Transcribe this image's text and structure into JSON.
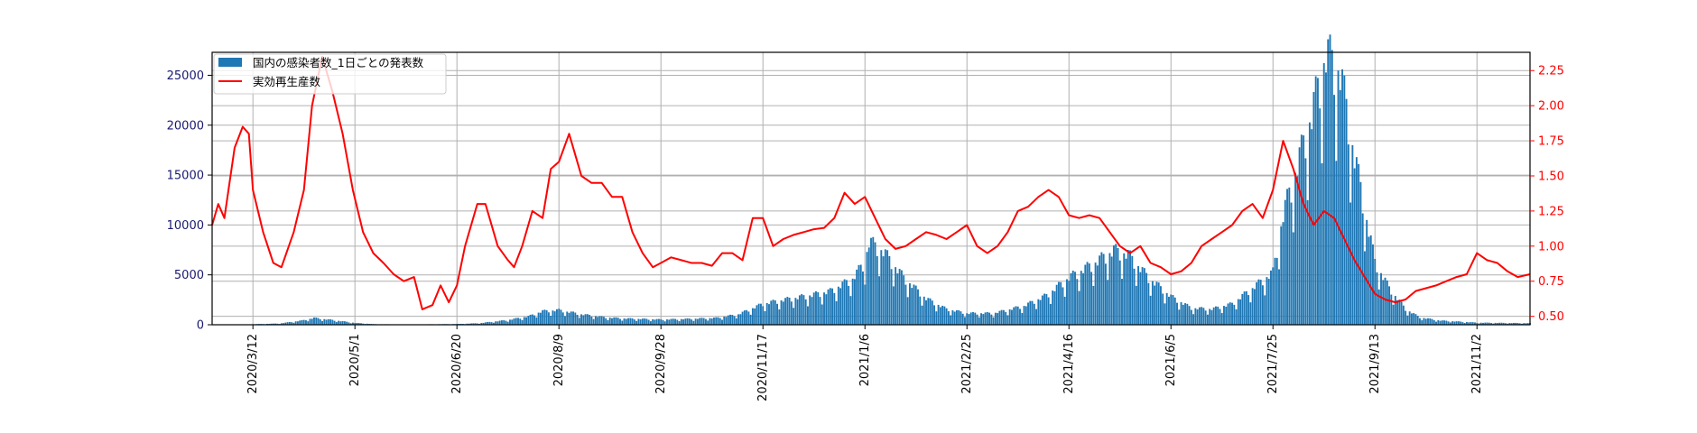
{
  "chart_data": {
    "type": "bar",
    "x_ticks": [
      "2020/3/12",
      "2020/5/1",
      "2020/6/20",
      "2020/8/9",
      "2020/9/28",
      "2020/11/17",
      "2021/1/6",
      "2021/2/25",
      "2021/4/16",
      "2021/6/5",
      "2021/7/25",
      "2021/9/13",
      "2021/11/2"
    ],
    "x_range": [
      "2020/2/21",
      "2021/11/28"
    ],
    "y_left": {
      "ticks": [
        0,
        5000,
        10000,
        15000,
        20000,
        25000
      ],
      "lim": [
        0,
        27300
      ],
      "color": "#191970"
    },
    "y_right": {
      "ticks": [
        0.5,
        0.75,
        1.0,
        1.25,
        1.5,
        1.75,
        2.0,
        2.25
      ],
      "lim": [
        0.44,
        2.38
      ],
      "color": "#ff0000"
    },
    "grid": true,
    "legend_placement": "upper-left",
    "series": [
      {
        "name": "国内の感染者数_1日ごとの発表数",
        "kind": "bar",
        "axis": "left",
        "color": "#1f77b4",
        "points": [
          [
            "2020/2/21",
            10
          ],
          [
            "2020/3/1",
            20
          ],
          [
            "2020/3/12",
            50
          ],
          [
            "2020/3/25",
            120
          ],
          [
            "2020/4/5",
            400
          ],
          [
            "2020/4/11",
            650
          ],
          [
            "2020/4/20",
            450
          ],
          [
            "2020/5/1",
            180
          ],
          [
            "2020/5/10",
            60
          ],
          [
            "2020/5/25",
            30
          ],
          [
            "2020/6/10",
            50
          ],
          [
            "2020/6/20",
            70
          ],
          [
            "2020/7/1",
            150
          ],
          [
            "2020/7/15",
            450
          ],
          [
            "2020/7/25",
            800
          ],
          [
            "2020/8/1",
            1300
          ],
          [
            "2020/8/9",
            1400
          ],
          [
            "2020/8/20",
            1000
          ],
          [
            "2020/9/1",
            700
          ],
          [
            "2020/9/10",
            600
          ],
          [
            "2020/9/28",
            500
          ],
          [
            "2020/10/10",
            550
          ],
          [
            "2020/10/25",
            650
          ],
          [
            "2020/11/5",
            1000
          ],
          [
            "2020/11/17",
            2000
          ],
          [
            "2020/11/28",
            2400
          ],
          [
            "2020/12/10",
            2800
          ],
          [
            "2020/12/20",
            3200
          ],
          [
            "2020/12/31",
            4400
          ],
          [
            "2021/1/6",
            6000
          ],
          [
            "2021/1/8",
            7900
          ],
          [
            "2021/1/15",
            7000
          ],
          [
            "2021/1/25",
            4500
          ],
          [
            "2021/2/5",
            2500
          ],
          [
            "2021/2/15",
            1500
          ],
          [
            "2021/2/25",
            1100
          ],
          [
            "2021/3/10",
            1100
          ],
          [
            "2021/3/25",
            1800
          ],
          [
            "2021/4/5",
            2800
          ],
          [
            "2021/4/16",
            4500
          ],
          [
            "2021/4/28",
            5800
          ],
          [
            "2021/5/8",
            7100
          ],
          [
            "2021/5/15",
            6700
          ],
          [
            "2021/5/25",
            4500
          ],
          [
            "2021/6/5",
            2700
          ],
          [
            "2021/6/15",
            1600
          ],
          [
            "2021/6/25",
            1500
          ],
          [
            "2021/7/5",
            2000
          ],
          [
            "2021/7/15",
            3500
          ],
          [
            "2021/7/25",
            5000
          ],
          [
            "2021/7/30",
            10500
          ],
          [
            "2021/8/5",
            14500
          ],
          [
            "2021/8/13",
            20000
          ],
          [
            "2021/8/20",
            25800
          ],
          [
            "2021/8/27",
            24000
          ],
          [
            "2021/9/3",
            16000
          ],
          [
            "2021/9/8",
            11000
          ],
          [
            "2021/9/13",
            6000
          ],
          [
            "2021/9/20",
            3500
          ],
          [
            "2021/9/28",
            1500
          ],
          [
            "2021/10/5",
            700
          ],
          [
            "2021/10/15",
            400
          ],
          [
            "2021/11/2",
            200
          ],
          [
            "2021/11/28",
            150
          ]
        ]
      },
      {
        "name": "実効再生産数",
        "kind": "line",
        "axis": "right",
        "color": "#ff0000",
        "points": [
          [
            "2020/2/21",
            1.15
          ],
          [
            "2020/2/24",
            1.3
          ],
          [
            "2020/2/27",
            1.2
          ],
          [
            "2020/3/3",
            1.7
          ],
          [
            "2020/3/7",
            1.85
          ],
          [
            "2020/3/10",
            1.8
          ],
          [
            "2020/3/12",
            1.4
          ],
          [
            "2020/3/17",
            1.1
          ],
          [
            "2020/3/22",
            0.88
          ],
          [
            "2020/3/26",
            0.85
          ],
          [
            "2020/4/1",
            1.1
          ],
          [
            "2020/4/6",
            1.4
          ],
          [
            "2020/4/10",
            2.0
          ],
          [
            "2020/4/15",
            2.35
          ],
          [
            "2020/4/20",
            2.1
          ],
          [
            "2020/4/25",
            1.8
          ],
          [
            "2020/4/30",
            1.4
          ],
          [
            "2020/5/5",
            1.1
          ],
          [
            "2020/5/10",
            0.95
          ],
          [
            "2020/5/15",
            0.88
          ],
          [
            "2020/5/20",
            0.8
          ],
          [
            "2020/5/25",
            0.75
          ],
          [
            "2020/5/30",
            0.78
          ],
          [
            "2020/6/3",
            0.55
          ],
          [
            "2020/6/8",
            0.58
          ],
          [
            "2020/6/12",
            0.72
          ],
          [
            "2020/6/16",
            0.6
          ],
          [
            "2020/6/20",
            0.72
          ],
          [
            "2020/6/24",
            1.0
          ],
          [
            "2020/6/30",
            1.3
          ],
          [
            "2020/7/4",
            1.3
          ],
          [
            "2020/7/10",
            1.0
          ],
          [
            "2020/7/15",
            0.9
          ],
          [
            "2020/7/18",
            0.85
          ],
          [
            "2020/7/22",
            1.0
          ],
          [
            "2020/7/27",
            1.25
          ],
          [
            "2020/8/1",
            1.2
          ],
          [
            "2020/8/5",
            1.55
          ],
          [
            "2020/8/9",
            1.6
          ],
          [
            "2020/8/14",
            1.8
          ],
          [
            "2020/8/20",
            1.5
          ],
          [
            "2020/8/25",
            1.45
          ],
          [
            "2020/8/30",
            1.45
          ],
          [
            "2020/9/4",
            1.35
          ],
          [
            "2020/9/9",
            1.35
          ],
          [
            "2020/9/14",
            1.1
          ],
          [
            "2020/9/19",
            0.95
          ],
          [
            "2020/9/24",
            0.85
          ],
          [
            "2020/9/28",
            0.88
          ],
          [
            "2020/10/3",
            0.92
          ],
          [
            "2020/10/8",
            0.9
          ],
          [
            "2020/10/13",
            0.88
          ],
          [
            "2020/10/18",
            0.88
          ],
          [
            "2020/10/23",
            0.86
          ],
          [
            "2020/10/28",
            0.95
          ],
          [
            "2020/11/2",
            0.95
          ],
          [
            "2020/11/7",
            0.9
          ],
          [
            "2020/11/12",
            1.2
          ],
          [
            "2020/11/17",
            1.2
          ],
          [
            "2020/11/22",
            1.0
          ],
          [
            "2020/11/27",
            1.05
          ],
          [
            "2020/12/2",
            1.08
          ],
          [
            "2020/12/7",
            1.1
          ],
          [
            "2020/12/12",
            1.12
          ],
          [
            "2020/12/17",
            1.13
          ],
          [
            "2020/12/22",
            1.2
          ],
          [
            "2020/12/27",
            1.38
          ],
          [
            "2021/1/1",
            1.3
          ],
          [
            "2021/1/6",
            1.35
          ],
          [
            "2021/1/11",
            1.2
          ],
          [
            "2021/1/16",
            1.05
          ],
          [
            "2021/1/21",
            0.98
          ],
          [
            "2021/1/26",
            1.0
          ],
          [
            "2021/1/31",
            1.05
          ],
          [
            "2021/2/5",
            1.1
          ],
          [
            "2021/2/10",
            1.08
          ],
          [
            "2021/2/15",
            1.05
          ],
          [
            "2021/2/20",
            1.1
          ],
          [
            "2021/2/25",
            1.15
          ],
          [
            "2021/3/2",
            1.0
          ],
          [
            "2021/3/7",
            0.95
          ],
          [
            "2021/3/12",
            1.0
          ],
          [
            "2021/3/17",
            1.1
          ],
          [
            "2021/3/22",
            1.25
          ],
          [
            "2021/3/27",
            1.28
          ],
          [
            "2021/4/1",
            1.35
          ],
          [
            "2021/4/6",
            1.4
          ],
          [
            "2021/4/11",
            1.35
          ],
          [
            "2021/4/16",
            1.22
          ],
          [
            "2021/4/21",
            1.2
          ],
          [
            "2021/4/26",
            1.22
          ],
          [
            "2021/5/1",
            1.2
          ],
          [
            "2021/5/6",
            1.1
          ],
          [
            "2021/5/11",
            1.0
          ],
          [
            "2021/5/16",
            0.95
          ],
          [
            "2021/5/21",
            1.0
          ],
          [
            "2021/5/26",
            0.88
          ],
          [
            "2021/5/31",
            0.85
          ],
          [
            "2021/6/5",
            0.8
          ],
          [
            "2021/6/10",
            0.82
          ],
          [
            "2021/6/15",
            0.88
          ],
          [
            "2021/6/20",
            1.0
          ],
          [
            "2021/6/25",
            1.05
          ],
          [
            "2021/6/30",
            1.1
          ],
          [
            "2021/7/5",
            1.15
          ],
          [
            "2021/7/10",
            1.25
          ],
          [
            "2021/7/15",
            1.3
          ],
          [
            "2021/7/20",
            1.2
          ],
          [
            "2021/7/25",
            1.4
          ],
          [
            "2021/7/30",
            1.75
          ],
          [
            "2021/8/4",
            1.55
          ],
          [
            "2021/8/9",
            1.3
          ],
          [
            "2021/8/14",
            1.15
          ],
          [
            "2021/8/19",
            1.25
          ],
          [
            "2021/8/24",
            1.2
          ],
          [
            "2021/8/29",
            1.05
          ],
          [
            "2021/9/3",
            0.9
          ],
          [
            "2021/9/8",
            0.78
          ],
          [
            "2021/9/13",
            0.66
          ],
          [
            "2021/9/18",
            0.62
          ],
          [
            "2021/9/23",
            0.6
          ],
          [
            "2021/9/28",
            0.62
          ],
          [
            "2021/10/3",
            0.68
          ],
          [
            "2021/10/8",
            0.7
          ],
          [
            "2021/10/13",
            0.72
          ],
          [
            "2021/10/18",
            0.75
          ],
          [
            "2021/10/23",
            0.78
          ],
          [
            "2021/10/28",
            0.8
          ],
          [
            "2021/11/2",
            0.95
          ],
          [
            "2021/11/7",
            0.9
          ],
          [
            "2021/11/12",
            0.88
          ],
          [
            "2021/11/17",
            0.82
          ],
          [
            "2021/11/22",
            0.78
          ],
          [
            "2021/11/28",
            0.8
          ]
        ]
      }
    ]
  }
}
